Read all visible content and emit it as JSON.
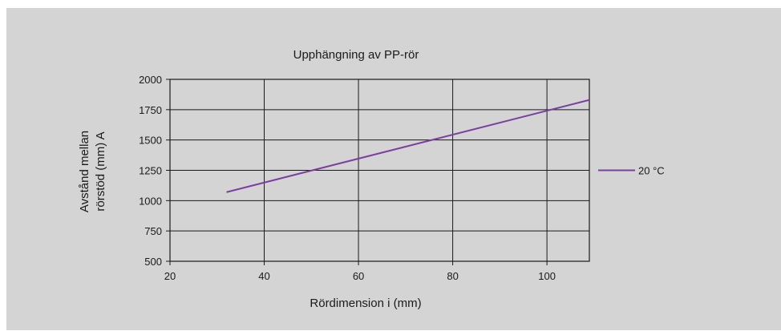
{
  "chart_data": {
    "type": "line",
    "title": "Upphängning av PP-rör",
    "xlabel": "Rördimension i (mm)",
    "ylabel_lines": [
      "Avstånd mellan",
      "rörstöd (mm) A"
    ],
    "xlim": [
      20,
      109
    ],
    "ylim": [
      500,
      2000
    ],
    "xticks": [
      20,
      40,
      60,
      80,
      100
    ],
    "yticks": [
      500,
      750,
      1000,
      1250,
      1500,
      1750,
      2000
    ],
    "grid": true,
    "legend_position": "right",
    "series": [
      {
        "name": "20 °C",
        "color": "#7b3fa0",
        "x": [
          32,
          110
        ],
        "y": [
          1070,
          1840
        ]
      }
    ]
  },
  "colors": {
    "panel_background": "#d4d4d4",
    "plot_background": "#d4d4d4",
    "grid": "#1a1a1a",
    "series_line": "#7b3fa0"
  }
}
